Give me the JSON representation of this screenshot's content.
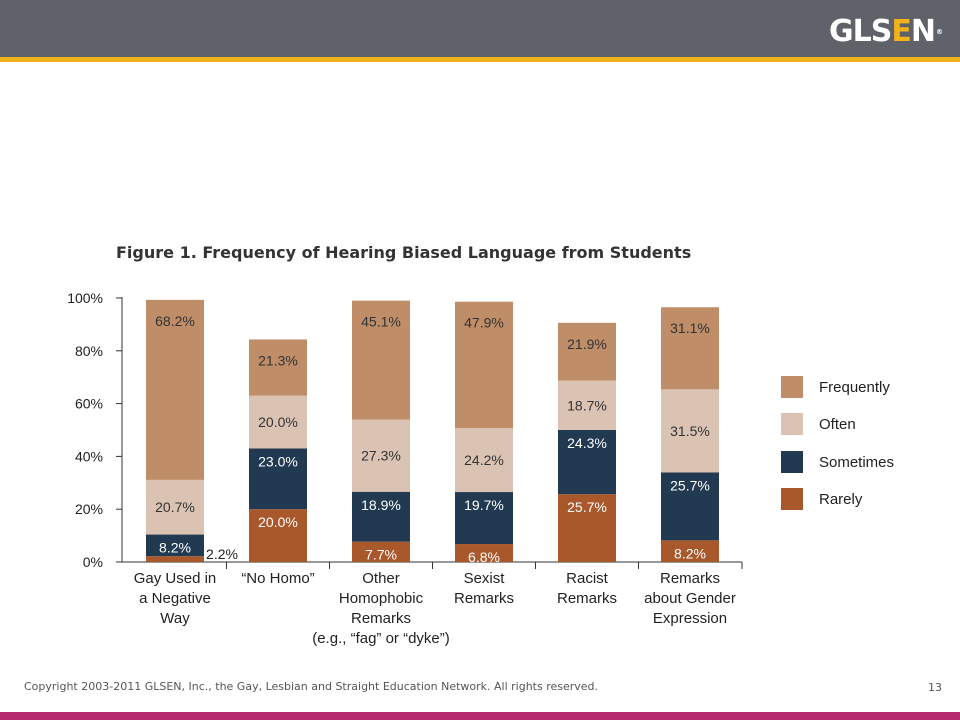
{
  "header": {
    "logo_main": "GLS",
    "logo_accent": "E",
    "logo_end": "N",
    "logo_mark": "®"
  },
  "colors": {
    "frequently": "#bf8d68",
    "often": "#dbc3b4",
    "sometimes": "#213a52",
    "rarely": "#a9582b",
    "topbar": "#5f6369",
    "gold": "#f3b21a",
    "magenta": "#b5296e"
  },
  "chart_data": {
    "type": "bar",
    "stacked": true,
    "title": "Figure 1. Frequency of Hearing Biased Language from Students",
    "ylim": [
      0,
      100
    ],
    "yticks": [
      "0%",
      "20%",
      "40%",
      "60%",
      "80%",
      "100%"
    ],
    "categories": [
      [
        "Gay Used in",
        "a Negative",
        "Way"
      ],
      [
        "“No Homo”"
      ],
      [
        "Other",
        "Homophobic",
        "Remarks",
        "(e.g., “fag” or “dyke”)"
      ],
      [
        "Sexist",
        "Remarks"
      ],
      [
        "Racist",
        "Remarks"
      ],
      [
        "Remarks",
        "about Gender",
        "Expression"
      ]
    ],
    "series": [
      {
        "name": "Rarely",
        "values": [
          2.2,
          20.0,
          7.7,
          6.8,
          25.7,
          8.2
        ],
        "labels": [
          "2.2%",
          "20.0%",
          "7.7%",
          "6.8%",
          "25.7%",
          "8.2%"
        ]
      },
      {
        "name": "Sometimes",
        "values": [
          8.2,
          23.0,
          18.9,
          19.7,
          24.3,
          25.7
        ],
        "labels": [
          "8.2%",
          "23.0%",
          "18.9%",
          "19.7%",
          "24.3%",
          "25.7%"
        ]
      },
      {
        "name": "Often",
        "values": [
          20.7,
          20.0,
          27.3,
          24.2,
          18.7,
          31.5
        ],
        "labels": [
          "20.7%",
          "20.0%",
          "27.3%",
          "24.2%",
          "18.7%",
          "31.5%"
        ]
      },
      {
        "name": "Frequently",
        "values": [
          68.2,
          21.3,
          45.1,
          47.9,
          21.9,
          31.1
        ],
        "labels": [
          "68.2%",
          "21.3%",
          "45.1%",
          "47.9%",
          "21.9%",
          "31.1%"
        ]
      }
    ],
    "legend": [
      "Frequently",
      "Often",
      "Sometimes",
      "Rarely"
    ],
    "legend_position": "right"
  },
  "footer": {
    "copyright": "Copyright 2003-2011 GLSEN, Inc., the Gay, Lesbian and Straight Education Network. All rights reserved.",
    "page_number": "13"
  }
}
